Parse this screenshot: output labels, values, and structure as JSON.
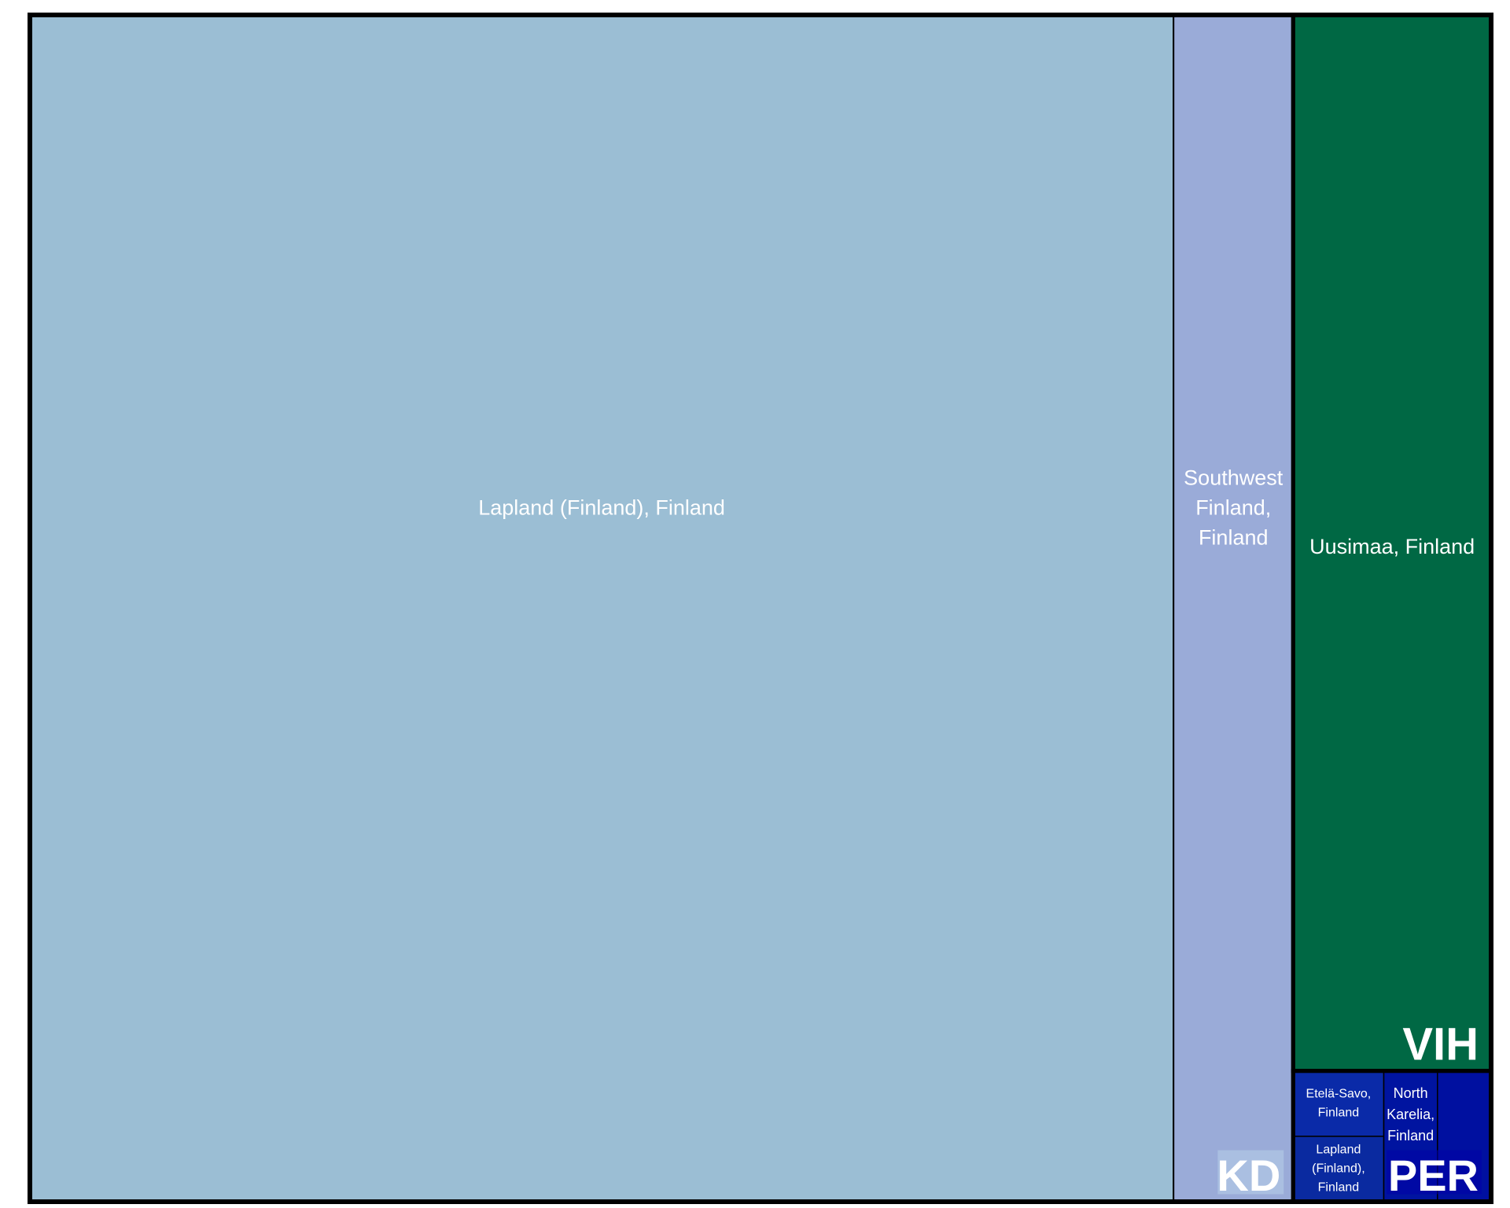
{
  "chart_data": {
    "type": "treemap",
    "groups": [
      {
        "name": "KD",
        "color": "#9ab8d4",
        "children": [
          {
            "name": "Lapland (Finland), Finland",
            "value": 87.0,
            "color": "#9bbed4",
            "label_lines": [
              "Lapland (Finland), Finland"
            ]
          },
          {
            "name": "Southwest Finland, Finland",
            "value": 9.1,
            "color": "#9aabd8",
            "label_lines": [
              "Southwest",
              "Finland,",
              "Finland"
            ]
          }
        ]
      },
      {
        "name": "VIH",
        "color": "#006844",
        "children": [
          {
            "name": "Uusimaa, Finland",
            "value": 13.4,
            "color": "#006844",
            "label_lines": [
              "Uusimaa, Finland"
            ]
          }
        ]
      },
      {
        "name": "PER",
        "color": "#0010a0",
        "children": [
          {
            "name": "Etelä-Savo, Finland",
            "value": 0.38,
            "color": "#0a2aa8",
            "label_lines": [
              "Etelä-Savo,",
              "Finland"
            ]
          },
          {
            "name": "Lapland (Finland), Finland",
            "value": 0.38,
            "color": "#0a2aa0",
            "label_lines": [
              "Lapland",
              "(Finland),",
              "Finland"
            ]
          },
          {
            "name": "North Karelia, Finland",
            "value": 0.45,
            "color": "#0014a0",
            "label_lines": [
              "North",
              "Karelia,",
              "Finland"
            ]
          },
          {
            "name": "",
            "value": 0.45,
            "color": "#0010a0",
            "label_lines": []
          }
        ]
      }
    ]
  }
}
